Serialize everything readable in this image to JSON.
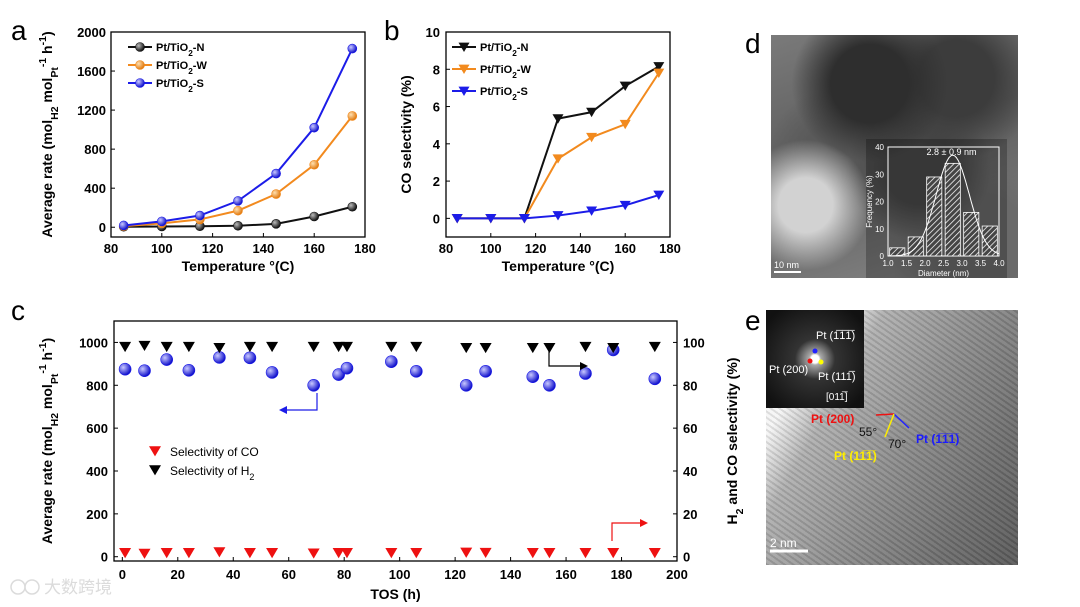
{
  "panel_labels": [
    "a",
    "b",
    "c",
    "d",
    "e"
  ],
  "colors": {
    "N": "#111111",
    "W": "#f28a1e",
    "S": "#1c1ce8",
    "red": "#ee1111"
  },
  "chart_data": [
    {
      "id": "a",
      "type": "line",
      "title": "",
      "xlabel": "Temperature °(C)",
      "ylabel_parts": [
        "Average rate (mol",
        "H2",
        " mol",
        "Pt",
        "-1",
        " h",
        "-1",
        ")"
      ],
      "xlim": [
        80,
        180
      ],
      "ylim": [
        -100,
        2000
      ],
      "xticks": [
        80,
        100,
        120,
        140,
        160,
        180
      ],
      "yticks": [
        0,
        400,
        800,
        1200,
        1600,
        2000
      ],
      "x": [
        85,
        100,
        115,
        130,
        145,
        160,
        175
      ],
      "series": [
        {
          "key": "N",
          "name_parts": [
            "Pt/TiO",
            "2",
            "-N"
          ],
          "values": [
            5,
            8,
            10,
            15,
            35,
            110,
            210
          ]
        },
        {
          "key": "W",
          "name_parts": [
            "Pt/TiO",
            "2",
            "-W"
          ],
          "values": [
            12,
            40,
            80,
            170,
            340,
            640,
            1140
          ]
        },
        {
          "key": "S",
          "name_parts": [
            "Pt/TiO",
            "2",
            "-S"
          ],
          "values": [
            18,
            60,
            120,
            270,
            550,
            1020,
            1830
          ]
        }
      ]
    },
    {
      "id": "b",
      "type": "line",
      "title": "",
      "xlabel": "Temperature °(C)",
      "ylabel": "CO selectivity (%)",
      "xlim": [
        80,
        180
      ],
      "ylim": [
        -1,
        10
      ],
      "xticks": [
        80,
        100,
        120,
        140,
        160,
        180
      ],
      "yticks": [
        0,
        2,
        4,
        6,
        8,
        10
      ],
      "x": [
        85,
        100,
        115,
        130,
        145,
        160,
        175
      ],
      "series": [
        {
          "key": "N",
          "name_parts": [
            "Pt/TiO",
            "2",
            "-N"
          ],
          "values": [
            0,
            0,
            0,
            5.35,
            5.7,
            7.1,
            8.15
          ]
        },
        {
          "key": "W",
          "name_parts": [
            "Pt/TiO",
            "2",
            "-W"
          ],
          "values": [
            0,
            0,
            0,
            3.2,
            4.35,
            5.05,
            7.8
          ]
        },
        {
          "key": "S",
          "name_parts": [
            "Pt/TiO",
            "2",
            "-S"
          ],
          "values": [
            0,
            0,
            0,
            0.15,
            0.4,
            0.7,
            1.25
          ]
        }
      ]
    },
    {
      "id": "c",
      "type": "scatter",
      "title": "",
      "xlabel": "TOS (h)",
      "ylabel_parts": [
        "Average rate (mol",
        "H2",
        " mol",
        "Pt",
        "-1",
        " h",
        "-1",
        ")"
      ],
      "y2label_parts": [
        "H",
        "2",
        " and CO selectivity (%)"
      ],
      "xlim": [
        -3,
        200
      ],
      "ylim": [
        -20,
        1100
      ],
      "y2lim": [
        -2,
        110
      ],
      "xticks": [
        0,
        20,
        40,
        60,
        80,
        100,
        120,
        140,
        160,
        180,
        200
      ],
      "yticks": [
        0,
        200,
        400,
        600,
        800,
        1000
      ],
      "y2ticks": [
        0,
        20,
        40,
        60,
        80,
        100
      ],
      "rate": {
        "x": [
          1,
          8,
          16,
          24,
          35,
          46,
          54,
          69,
          78,
          81,
          97,
          106,
          124,
          131,
          148,
          154,
          167,
          177,
          192
        ],
        "values": [
          875,
          868,
          920,
          870,
          930,
          928,
          860,
          800,
          850,
          880,
          910,
          865,
          800,
          865,
          840,
          800,
          855,
          965,
          830
        ]
      },
      "h2_selectivity": {
        "legend_parts": [
          "Selectivity of H",
          "2",
          ""
        ],
        "x": [
          1,
          8,
          16,
          24,
          35,
          46,
          54,
          69,
          78,
          81,
          97,
          106,
          124,
          131,
          148,
          154,
          167,
          177,
          192
        ],
        "values": [
          98,
          98.5,
          98,
          98,
          97.5,
          98,
          98,
          98,
          98,
          98,
          98,
          98,
          97.5,
          97.5,
          97.5,
          97.5,
          98,
          97.5,
          98
        ]
      },
      "co_selectivity": {
        "legend": "Selectivity of CO",
        "x": [
          1,
          8,
          16,
          24,
          35,
          46,
          54,
          69,
          78,
          81,
          97,
          106,
          124,
          131,
          148,
          154,
          167,
          177,
          192
        ],
        "values": [
          1.8,
          1.5,
          1.8,
          1.8,
          2.2,
          1.8,
          1.8,
          1.6,
          1.8,
          1.8,
          1.8,
          1.8,
          2.0,
          1.9,
          1.8,
          1.8,
          1.8,
          1.8,
          1.8
        ]
      }
    },
    {
      "id": "d_inset",
      "type": "bar",
      "title": "",
      "xlabel": "Diameter (nm)",
      "ylabel": "Frequency (%)",
      "annotation": "2.8 ± 0.9 nm",
      "xlim": [
        1.0,
        4.0
      ],
      "ylim": [
        0,
        40
      ],
      "xticks": [
        "1.0",
        "1.5",
        "2.0",
        "2.5",
        "3.0",
        "3.5",
        "4.0"
      ],
      "yticks": [
        0,
        10,
        20,
        30,
        40
      ],
      "bins": [
        1.25,
        1.75,
        2.25,
        2.75,
        3.25,
        3.75
      ],
      "values": [
        3,
        7,
        29,
        34,
        16,
        11
      ],
      "fit": {
        "type": "gaussian",
        "mean": 2.75,
        "sd": 0.45,
        "peak": 37
      }
    }
  ],
  "micrographs": {
    "d_scale": "10 nm",
    "e_scale": "2 nm",
    "fft_labels": [
      "Pt (1̅1̅1̅)",
      "Pt (200)",
      "Pt (111̅)",
      "[011̅]"
    ],
    "lattice_labels": {
      "red": "Pt (200)",
      "blue": "Pt (1̅1̅1̅)",
      "yellow": "Pt (11̅1̅)",
      "angle1": "55°",
      "angle2": "70°"
    }
  },
  "watermark": "大数跨境"
}
